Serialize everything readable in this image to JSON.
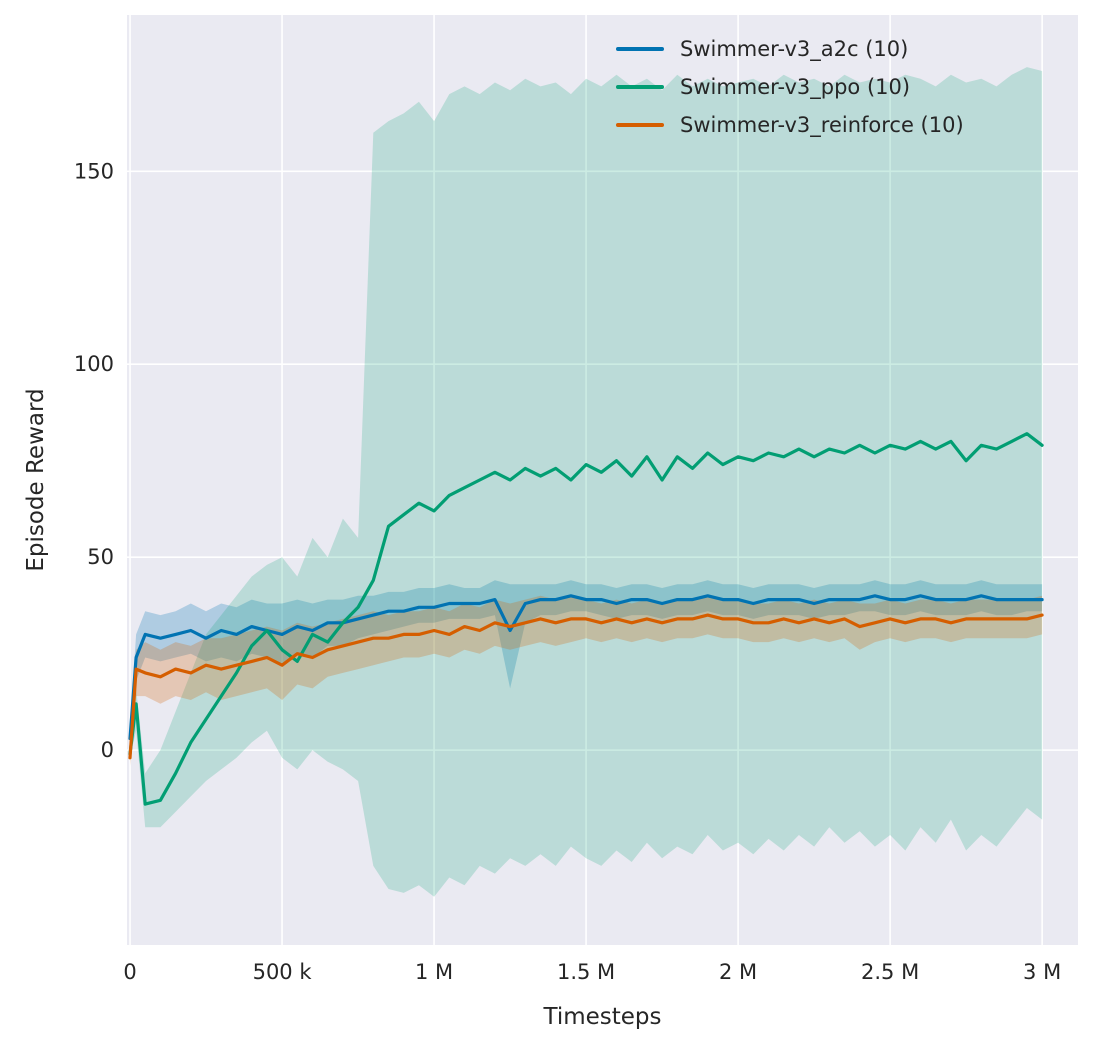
{
  "figure": {
    "background": "#ffffff",
    "plot_background": "#eaeaf2",
    "grid_color": "#ffffff",
    "text_color": "#262626"
  },
  "chart_data": {
    "type": "line",
    "title": "",
    "xlabel": "Timesteps",
    "ylabel": "Episode Reward",
    "grid": true,
    "legend_position": "upper center-right",
    "xlim_thousands": [
      -10,
      3118
    ],
    "ylim": [
      -50.5,
      190.5
    ],
    "x_tick_values_thousands": [
      0,
      500,
      1000,
      1500,
      2000,
      2500,
      3000
    ],
    "x_tick_labels": [
      "0",
      "500 k",
      "1 M",
      "1.5 M",
      "2 M",
      "2.5 M",
      "3 M"
    ],
    "y_tick_values": [
      0,
      50,
      100,
      150
    ],
    "y_tick_labels": [
      "0",
      "50",
      "100",
      "150"
    ],
    "x_thousands": [
      0,
      20,
      50,
      100,
      150,
      200,
      250,
      300,
      350,
      400,
      450,
      500,
      550,
      600,
      650,
      700,
      750,
      800,
      850,
      900,
      950,
      1000,
      1050,
      1100,
      1150,
      1200,
      1250,
      1300,
      1350,
      1400,
      1450,
      1500,
      1550,
      1600,
      1650,
      1700,
      1750,
      1800,
      1850,
      1900,
      1950,
      2000,
      2050,
      2100,
      2150,
      2200,
      2250,
      2300,
      2350,
      2400,
      2450,
      2500,
      2550,
      2600,
      2650,
      2700,
      2750,
      2800,
      2850,
      2900,
      2950,
      3000
    ],
    "series": [
      {
        "name": "Swimmer-v3_a2c (10)",
        "color": "#0173b2",
        "band_opacity": 0.25,
        "mean": [
          3,
          24,
          30,
          29,
          30,
          31,
          29,
          31,
          30,
          32,
          31,
          30,
          32,
          31,
          33,
          33,
          34,
          35,
          36,
          36,
          37,
          37,
          38,
          38,
          38,
          39,
          31,
          38,
          39,
          39,
          40,
          39,
          39,
          38,
          39,
          39,
          38,
          39,
          39,
          40,
          39,
          39,
          38,
          39,
          39,
          39,
          38,
          39,
          39,
          39,
          40,
          39,
          39,
          40,
          39,
          39,
          39,
          40,
          39,
          39,
          39,
          39
        ],
        "band_low": [
          0,
          18,
          24,
          23,
          24,
          25,
          23,
          24,
          23,
          25,
          24,
          22,
          25,
          24,
          27,
          27,
          29,
          30,
          31,
          32,
          33,
          33,
          34,
          34,
          34,
          35,
          16,
          33,
          35,
          35,
          36,
          36,
          35,
          34,
          35,
          35,
          34,
          35,
          35,
          36,
          35,
          35,
          34,
          35,
          35,
          35,
          34,
          35,
          35,
          36,
          36,
          35,
          35,
          36,
          35,
          35,
          35,
          36,
          35,
          35,
          36,
          36
        ],
        "band_high": [
          6,
          30,
          36,
          35,
          36,
          38,
          36,
          38,
          37,
          39,
          38,
          38,
          39,
          38,
          39,
          39,
          40,
          40,
          41,
          41,
          42,
          42,
          43,
          42,
          42,
          44,
          43,
          43,
          43,
          43,
          44,
          43,
          43,
          42,
          43,
          43,
          42,
          43,
          43,
          44,
          43,
          43,
          42,
          43,
          43,
          43,
          42,
          43,
          43,
          43,
          44,
          43,
          43,
          44,
          43,
          43,
          43,
          44,
          43,
          43,
          43,
          43
        ]
      },
      {
        "name": "Swimmer-v3_ppo (10)",
        "color": "#029e73",
        "band_opacity": 0.2,
        "mean": [
          -1,
          12,
          -14,
          -13,
          -6,
          2,
          8,
          14,
          20,
          27,
          31,
          26,
          23,
          30,
          28,
          33,
          37,
          44,
          58,
          61,
          64,
          62,
          66,
          68,
          70,
          72,
          70,
          73,
          71,
          73,
          70,
          74,
          72,
          75,
          71,
          76,
          70,
          76,
          73,
          77,
          74,
          76,
          75,
          77,
          76,
          78,
          76,
          78,
          77,
          79,
          77,
          79,
          78,
          80,
          78,
          80,
          75,
          79,
          78,
          80,
          82,
          79
        ],
        "band_low": [
          -2,
          5,
          -20,
          -20,
          -16,
          -12,
          -8,
          -5,
          -2,
          2,
          5,
          -2,
          -5,
          0,
          -3,
          -5,
          -8,
          -30,
          -36,
          -37,
          -35,
          -38,
          -33,
          -35,
          -30,
          -32,
          -28,
          -30,
          -27,
          -30,
          -25,
          -28,
          -30,
          -26,
          -29,
          -24,
          -28,
          -25,
          -27,
          -22,
          -26,
          -24,
          -27,
          -23,
          -26,
          -22,
          -25,
          -20,
          -24,
          -21,
          -25,
          -22,
          -26,
          -20,
          -24,
          -18,
          -26,
          -22,
          -25,
          -20,
          -15,
          -18
        ],
        "band_high": [
          2,
          16,
          -6,
          0,
          10,
          20,
          30,
          35,
          40,
          45,
          48,
          50,
          45,
          55,
          50,
          60,
          55,
          160,
          163,
          165,
          168,
          163,
          170,
          172,
          170,
          173,
          171,
          174,
          172,
          173,
          170,
          174,
          172,
          175,
          172,
          174,
          171,
          175,
          172,
          174,
          172,
          173,
          174,
          172,
          175,
          173,
          174,
          172,
          175,
          173,
          174,
          173,
          175,
          174,
          172,
          175,
          173,
          174,
          172,
          175,
          177,
          176
        ]
      },
      {
        "name": "Swimmer-v3_reinforce (10)",
        "color": "#d55e00",
        "band_opacity": 0.25,
        "mean": [
          -2,
          21,
          20,
          19,
          21,
          20,
          22,
          21,
          22,
          23,
          24,
          22,
          25,
          24,
          26,
          27,
          28,
          29,
          29,
          30,
          30,
          31,
          30,
          32,
          31,
          33,
          32,
          33,
          34,
          33,
          34,
          34,
          33,
          34,
          33,
          34,
          33,
          34,
          34,
          35,
          34,
          34,
          33,
          33,
          34,
          33,
          34,
          33,
          34,
          32,
          33,
          34,
          33,
          34,
          34,
          33,
          34,
          34,
          34,
          34,
          34,
          35
        ],
        "band_low": [
          -4,
          14,
          14,
          12,
          14,
          13,
          15,
          13,
          14,
          15,
          16,
          13,
          17,
          16,
          19,
          20,
          21,
          22,
          23,
          24,
          24,
          25,
          24,
          26,
          25,
          27,
          26,
          27,
          28,
          27,
          28,
          29,
          28,
          29,
          28,
          29,
          28,
          29,
          29,
          30,
          29,
          29,
          28,
          28,
          29,
          28,
          29,
          28,
          29,
          26,
          28,
          29,
          28,
          29,
          29,
          28,
          29,
          29,
          29,
          29,
          29,
          30
        ],
        "band_high": [
          0,
          26,
          28,
          26,
          28,
          27,
          29,
          29,
          30,
          31,
          32,
          31,
          33,
          32,
          33,
          34,
          35,
          36,
          35,
          36,
          36,
          37,
          36,
          38,
          37,
          39,
          38,
          39,
          40,
          39,
          40,
          39,
          38,
          39,
          38,
          39,
          38,
          39,
          39,
          40,
          39,
          39,
          38,
          38,
          39,
          38,
          39,
          38,
          39,
          38,
          38,
          39,
          38,
          39,
          39,
          38,
          39,
          39,
          39,
          39,
          39,
          40
        ]
      }
    ]
  }
}
